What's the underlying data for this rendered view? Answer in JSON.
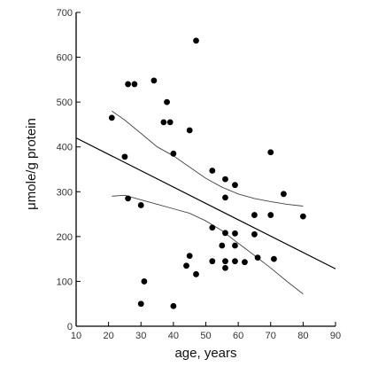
{
  "chart_data": {
    "type": "scatter",
    "title": "",
    "xlabel": "age, years",
    "ylabel": "μmole/g  protein",
    "xlim": [
      10,
      90
    ],
    "ylim": [
      0,
      700
    ],
    "xticks": [
      10,
      20,
      30,
      40,
      50,
      60,
      70,
      80,
      90
    ],
    "yticks": [
      0,
      100,
      200,
      300,
      400,
      500,
      600,
      700
    ],
    "grid": false,
    "legend": "none",
    "points": [
      {
        "x": 21,
        "y": 465
      },
      {
        "x": 25,
        "y": 378
      },
      {
        "x": 26,
        "y": 285
      },
      {
        "x": 26,
        "y": 540
      },
      {
        "x": 28,
        "y": 540
      },
      {
        "x": 30,
        "y": 270
      },
      {
        "x": 30,
        "y": 50
      },
      {
        "x": 31,
        "y": 100
      },
      {
        "x": 34,
        "y": 548
      },
      {
        "x": 37,
        "y": 455
      },
      {
        "x": 38,
        "y": 500
      },
      {
        "x": 39,
        "y": 455
      },
      {
        "x": 40,
        "y": 385
      },
      {
        "x": 40,
        "y": 45
      },
      {
        "x": 44,
        "y": 135
      },
      {
        "x": 45,
        "y": 437
      },
      {
        "x": 45,
        "y": 157
      },
      {
        "x": 47,
        "y": 637
      },
      {
        "x": 47,
        "y": 116
      },
      {
        "x": 52,
        "y": 347
      },
      {
        "x": 52,
        "y": 220
      },
      {
        "x": 52,
        "y": 145
      },
      {
        "x": 55,
        "y": 180
      },
      {
        "x": 56,
        "y": 145
      },
      {
        "x": 56,
        "y": 130
      },
      {
        "x": 56,
        "y": 287
      },
      {
        "x": 56,
        "y": 328
      },
      {
        "x": 56,
        "y": 208
      },
      {
        "x": 59,
        "y": 315
      },
      {
        "x": 59,
        "y": 207
      },
      {
        "x": 59,
        "y": 180
      },
      {
        "x": 59,
        "y": 145
      },
      {
        "x": 62,
        "y": 143
      },
      {
        "x": 65,
        "y": 205
      },
      {
        "x": 65,
        "y": 248
      },
      {
        "x": 66,
        "y": 153
      },
      {
        "x": 70,
        "y": 388
      },
      {
        "x": 70,
        "y": 248
      },
      {
        "x": 71,
        "y": 150
      },
      {
        "x": 74,
        "y": 295
      },
      {
        "x": 80,
        "y": 245
      }
    ],
    "regression_line": [
      {
        "x": 10,
        "y": 420
      },
      {
        "x": 90,
        "y": 128
      }
    ],
    "ci_upper": [
      {
        "x": 21,
        "y": 480
      },
      {
        "x": 25,
        "y": 460
      },
      {
        "x": 30,
        "y": 430
      },
      {
        "x": 35,
        "y": 400
      },
      {
        "x": 40,
        "y": 380
      },
      {
        "x": 45,
        "y": 355
      },
      {
        "x": 50,
        "y": 330
      },
      {
        "x": 55,
        "y": 310
      },
      {
        "x": 60,
        "y": 295
      },
      {
        "x": 65,
        "y": 285
      },
      {
        "x": 70,
        "y": 278
      },
      {
        "x": 75,
        "y": 272
      },
      {
        "x": 80,
        "y": 268
      }
    ],
    "ci_lower": [
      {
        "x": 21,
        "y": 290
      },
      {
        "x": 25,
        "y": 292
      },
      {
        "x": 30,
        "y": 282
      },
      {
        "x": 35,
        "y": 272
      },
      {
        "x": 40,
        "y": 262
      },
      {
        "x": 45,
        "y": 252
      },
      {
        "x": 50,
        "y": 235
      },
      {
        "x": 55,
        "y": 213
      },
      {
        "x": 60,
        "y": 185
      },
      {
        "x": 65,
        "y": 158
      },
      {
        "x": 70,
        "y": 130
      },
      {
        "x": 75,
        "y": 100
      },
      {
        "x": 80,
        "y": 72
      }
    ]
  }
}
